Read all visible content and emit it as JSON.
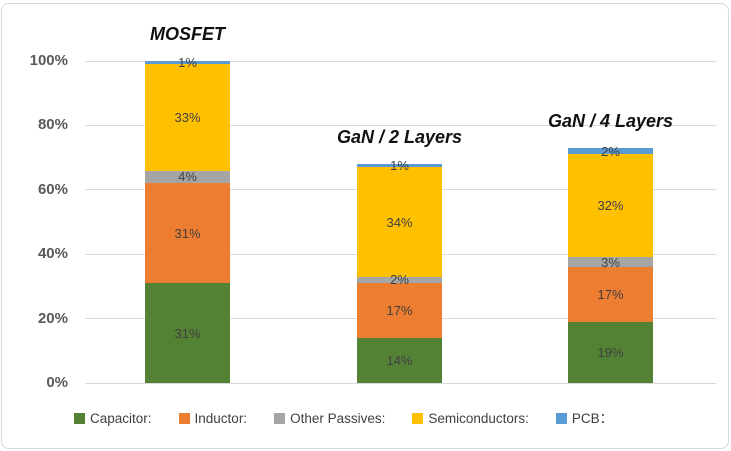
{
  "chart_data": {
    "type": "bar",
    "stacked": true,
    "title": "",
    "categories": [
      "MOSFET",
      "GaN / 2 Layers",
      "GaN / 4 Layers"
    ],
    "series": [
      {
        "name": "Capacitor:",
        "color": "#548235",
        "values": [
          31,
          14,
          19
        ]
      },
      {
        "name": "Inductor:",
        "color": "#ED7D31",
        "values": [
          31,
          17,
          17
        ]
      },
      {
        "name": "Other Passives:",
        "color": "#A5A5A5",
        "values": [
          4,
          2,
          3
        ]
      },
      {
        "name": "Semiconductors:",
        "color": "#FFC000",
        "values": [
          33,
          34,
          32
        ]
      },
      {
        "name": "PCB：",
        "color": "#5B9BD5",
        "values": [
          1,
          1,
          2
        ]
      }
    ],
    "totals": [
      100,
      68,
      73
    ],
    "data_label_suffix": "%",
    "y_axis": {
      "min": 0,
      "max": 100,
      "tick_step": 20,
      "tick_labels": [
        "0%",
        "20%",
        "40%",
        "60%",
        "80%",
        "100%"
      ],
      "gridlines": true
    },
    "legend_position": "bottom",
    "colors": {
      "gridline": "#D9D9D9",
      "axis_text": "#595959",
      "data_label": "#404040",
      "category_title": "#111111"
    }
  }
}
